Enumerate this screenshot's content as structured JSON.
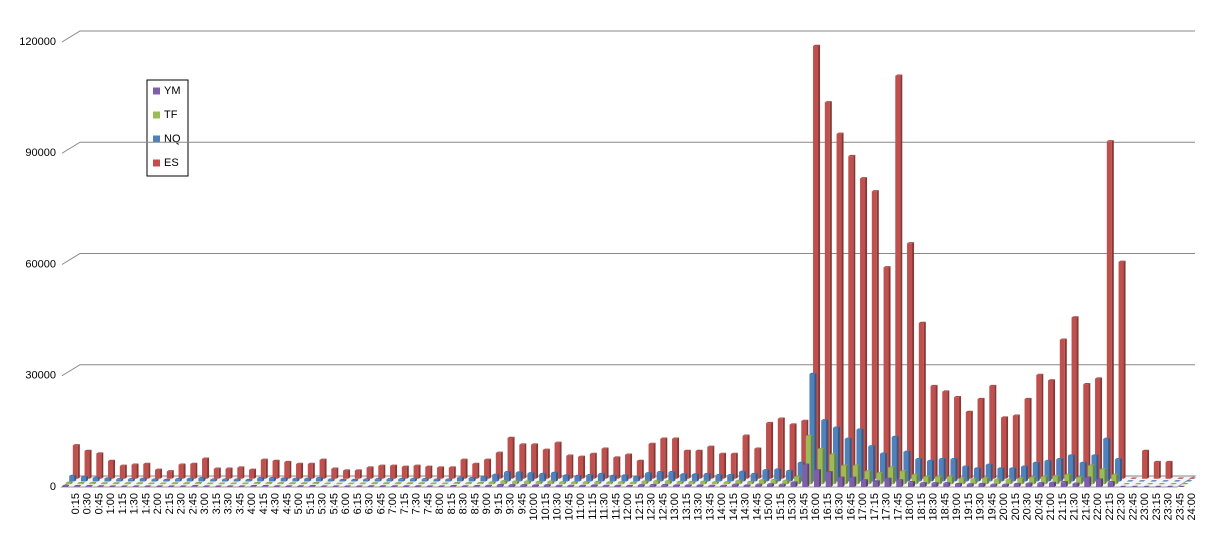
{
  "chart_data": {
    "type": "bar",
    "categories": [
      "0:15",
      "0:30",
      "0:45",
      "1:00",
      "1:15",
      "1:30",
      "1:45",
      "2:00",
      "2:15",
      "2:30",
      "2:45",
      "3:00",
      "3:15",
      "3:30",
      "3:45",
      "4:00",
      "4:15",
      "4:30",
      "4:45",
      "5:00",
      "5:15",
      "5:30",
      "5:45",
      "6:00",
      "6:15",
      "6:30",
      "6:45",
      "7:00",
      "7:15",
      "7:30",
      "7:45",
      "8:00",
      "8:15",
      "8:30",
      "8:45",
      "9:00",
      "9:15",
      "9:30",
      "9:45",
      "10:00",
      "10:15",
      "10:30",
      "10:45",
      "11:00",
      "11:15",
      "11:30",
      "11:45",
      "12:00",
      "12:15",
      "12:30",
      "12:45",
      "13:00",
      "13:15",
      "13:30",
      "13:45",
      "14:00",
      "14:15",
      "14:30",
      "14:45",
      "15:00",
      "15:15",
      "15:30",
      "15:45",
      "16:00",
      "16:15",
      "16:30",
      "16:45",
      "17:00",
      "17:15",
      "17:30",
      "17:45",
      "18:00",
      "18:15",
      "18:30",
      "18:45",
      "19:00",
      "19:15",
      "19:30",
      "19:45",
      "20:00",
      "20:15",
      "20:30",
      "20:45",
      "21:00",
      "21:15",
      "21:30",
      "21:45",
      "22:00",
      "22:15",
      "22:30",
      "22:45",
      "23:00",
      "23:15",
      "23:30",
      "23:45",
      "24:00"
    ],
    "series": [
      {
        "name": "YM",
        "color": "#7f60a8",
        "values": [
          300,
          200,
          200,
          150,
          100,
          100,
          100,
          100,
          100,
          100,
          100,
          200,
          100,
          100,
          100,
          100,
          200,
          200,
          150,
          150,
          150,
          200,
          100,
          100,
          100,
          100,
          150,
          150,
          150,
          150,
          150,
          100,
          100,
          200,
          150,
          200,
          300,
          500,
          450,
          450,
          400,
          450,
          300,
          300,
          300,
          400,
          300,
          300,
          250,
          450,
          500,
          500,
          400,
          400,
          400,
          300,
          300,
          600,
          400,
          600,
          700,
          600,
          1200,
          6000,
          4500,
          4000,
          2500,
          2500,
          1800,
          1500,
          2200,
          1800,
          1300,
          1000,
          1000,
          1000,
          800,
          700,
          800,
          600,
          600,
          800,
          900,
          1000,
          1100,
          1300,
          900,
          2500,
          2000,
          1300,
          0,
          0,
          0,
          0,
          0,
          0
        ]
      },
      {
        "name": "TF",
        "color": "#9bbb59",
        "values": [
          400,
          300,
          300,
          200,
          200,
          200,
          200,
          150,
          150,
          200,
          200,
          300,
          150,
          150,
          150,
          150,
          300,
          300,
          250,
          200,
          200,
          300,
          150,
          100,
          100,
          150,
          200,
          200,
          200,
          200,
          200,
          150,
          150,
          300,
          250,
          300,
          500,
          800,
          700,
          700,
          600,
          700,
          500,
          450,
          500,
          600,
          450,
          500,
          400,
          700,
          800,
          800,
          600,
          600,
          650,
          500,
          500,
          900,
          600,
          1000,
          1100,
          900,
          2000,
          13000,
          9500,
          8000,
          5000,
          5000,
          3500,
          3000,
          4500,
          3500,
          2500,
          2000,
          2000,
          2000,
          1500,
          1300,
          1600,
          1200,
          1200,
          1500,
          1800,
          2000,
          2200,
          2500,
          1800,
          5000,
          4000,
          2500,
          0,
          0,
          0,
          0,
          0,
          0
        ]
      },
      {
        "name": "NQ",
        "color": "#4f81bd",
        "values": [
          1500,
          1200,
          1000,
          800,
          600,
          600,
          700,
          500,
          400,
          600,
          700,
          900,
          500,
          500,
          500,
          400,
          900,
          900,
          800,
          700,
          700,
          900,
          500,
          400,
          400,
          500,
          600,
          600,
          600,
          600,
          600,
          500,
          500,
          1000,
          900,
          1200,
          1800,
          2500,
          2400,
          2200,
          2000,
          2300,
          1600,
          1500,
          1700,
          2000,
          1500,
          1600,
          1200,
          2200,
          2500,
          2500,
          1900,
          1900,
          2000,
          1700,
          1700,
          2600,
          2000,
          3000,
          3200,
          2800,
          5000,
          29000,
          16500,
          14500,
          11500,
          14000,
          9500,
          7500,
          12000,
          8000,
          6000,
          5500,
          6000,
          6000,
          4000,
          3500,
          4500,
          3500,
          3500,
          4000,
          5000,
          5500,
          6000,
          7000,
          5000,
          7000,
          11500,
          6000,
          0,
          0,
          0,
          0,
          0,
          0
        ]
      },
      {
        "name": "ES",
        "color": "#c0504d",
        "values": [
          9000,
          7500,
          6800,
          4800,
          3500,
          3800,
          4000,
          2400,
          2000,
          3800,
          4000,
          5400,
          2700,
          2700,
          3000,
          2400,
          5100,
          4800,
          4500,
          4000,
          4000,
          5100,
          2700,
          2200,
          2200,
          3000,
          3500,
          3500,
          3200,
          3500,
          3200,
          3000,
          3000,
          5100,
          4000,
          5100,
          7000,
          11000,
          9200,
          9200,
          7800,
          9700,
          6200,
          5900,
          6700,
          8100,
          5700,
          6500,
          4800,
          9400,
          10800,
          10800,
          7500,
          7500,
          8600,
          6700,
          6700,
          11600,
          8100,
          15000,
          16200,
          14600,
          15600,
          116700,
          101500,
          93000,
          87000,
          81000,
          77500,
          57000,
          108700,
          63500,
          42000,
          25000,
          23500,
          22000,
          18000,
          21500,
          25000,
          16500,
          17000,
          21500,
          28000,
          26500,
          37500,
          43500,
          25500,
          27000,
          91000,
          58500,
          0,
          7500,
          4500,
          4500,
          0,
          0
        ]
      }
    ],
    "ylim": [
      0,
      120000
    ],
    "yticks": [
      0,
      30000,
      60000,
      90000,
      120000
    ],
    "grid": true,
    "legend": "top-left"
  }
}
